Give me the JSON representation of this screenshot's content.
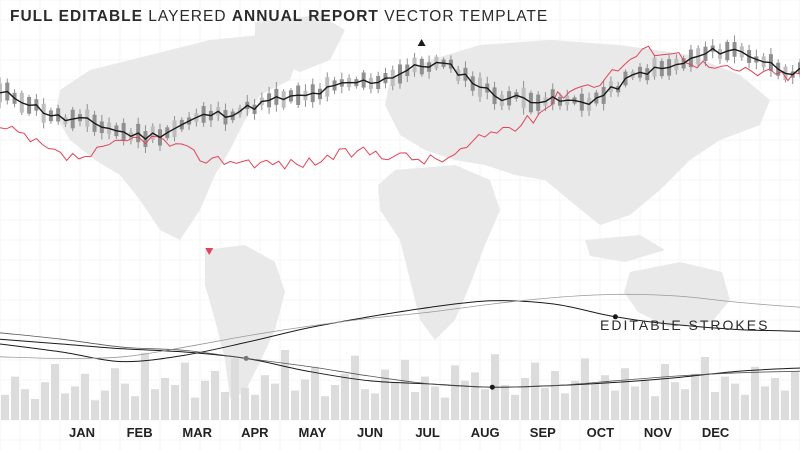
{
  "title": {
    "part1": "FULL EDITABLE",
    "part2": "LAYERED",
    "part3": "ANNUAL REPORT",
    "part4": "VECTOR TEMPLATE"
  },
  "annotation": "EDITABLE STROKES",
  "colors": {
    "background": "#ffffff",
    "map": "#e9e9e9",
    "grid": "#eeeeee",
    "main_line": "#1a1a1a",
    "accent_line": "#e0445a",
    "candles": "#8f8f8f",
    "volume_bars": "#dcdcdc",
    "marker_up": "#1a1a1a",
    "marker_down": "#e0445a"
  },
  "chart_data": [
    {
      "type": "line",
      "categories": [
        "JAN",
        "FEB",
        "MAR",
        "APR",
        "MAY",
        "JUN",
        "JUL",
        "AUG",
        "SEP",
        "OCT",
        "NOV",
        "DEC"
      ],
      "series": [
        {
          "values": [
            73,
            60,
            52,
            63,
            71,
            79,
            88,
            71,
            69,
            85,
            95,
            84
          ]
        },
        {
          "values": [
            55,
            41,
            51,
            40,
            38,
            44,
            40,
            56,
            77,
            95,
            85,
            82
          ]
        }
      ],
      "markers": [
        {
          "month": "JUL",
          "kind": "high"
        },
        {
          "month": "MAR",
          "kind": "low"
        }
      ],
      "ylim": [
        0,
        100
      ]
    },
    {
      "type": "line",
      "series": [
        {
          "values": [
            35,
            30,
            24,
            28,
            36,
            45,
            52,
            58,
            62,
            60,
            52,
            47,
            44,
            43
          ]
        },
        {
          "values": [
            38,
            35,
            32,
            30,
            26,
            18,
            12,
            10,
            8,
            9,
            11,
            14,
            18,
            20
          ]
        },
        {
          "values": [
            42,
            38,
            33,
            31,
            26,
            21,
            15,
            10,
            8,
            9,
            12,
            15,
            17,
            18
          ]
        },
        {
          "values": [
            27,
            26,
            27,
            33,
            40,
            46,
            51,
            55,
            60,
            64,
            66,
            65,
            61,
            58
          ]
        }
      ],
      "ylim": [
        0,
        100
      ]
    },
    {
      "type": "bar",
      "values": [
        18,
        31,
        22,
        15,
        27,
        40,
        19,
        24,
        33,
        14,
        21,
        37,
        26,
        17,
        48,
        22,
        30,
        25,
        41,
        16,
        28,
        35,
        20,
        44,
        23,
        18,
        32,
        26,
        50,
        21,
        29,
        38,
        17,
        25,
        33,
        46,
        22,
        19,
        36,
        27,
        43,
        20,
        31,
        24,
        16,
        39,
        28,
        34,
        22,
        47,
        25,
        18,
        30,
        41,
        23,
        35,
        19,
        28,
        44,
        26,
        32,
        21,
        37,
        24,
        29,
        17,
        40,
        27,
        22,
        33,
        45,
        20,
        31,
        26,
        18,
        38,
        24,
        30,
        21,
        35
      ],
      "ylim": [
        0,
        100
      ]
    }
  ]
}
